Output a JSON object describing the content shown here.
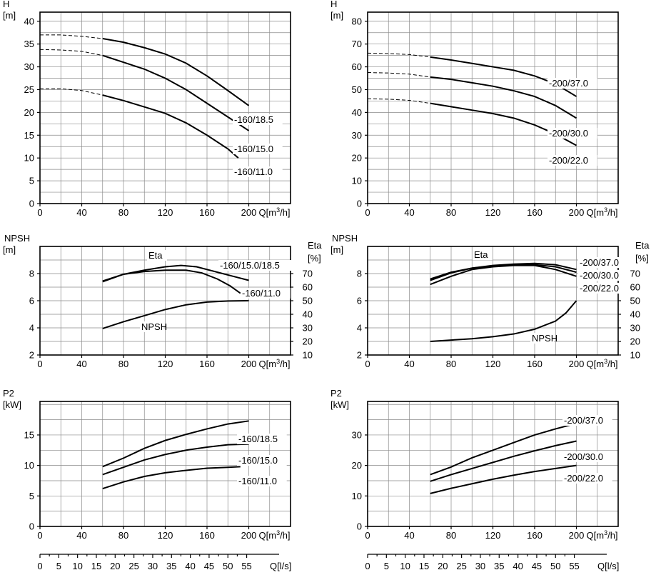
{
  "chart_data": [
    {
      "type": "line",
      "id": "H-160",
      "title": "",
      "ylabel": [
        "H",
        "[m]"
      ],
      "xlabel": "Q[m³/h]",
      "xlim": [
        0,
        240
      ],
      "xticks": [
        0,
        40,
        80,
        120,
        160,
        200
      ],
      "ylim": [
        0,
        42
      ],
      "yticks": [
        0,
        5,
        10,
        15,
        20,
        25,
        30,
        35,
        40
      ],
      "series": [
        {
          "name": "-160/18.5",
          "x": [
            0,
            20,
            40,
            60,
            80,
            100,
            120,
            140,
            160,
            180,
            200
          ],
          "y": [
            37,
            37,
            36.7,
            36.2,
            35.4,
            34.2,
            32.8,
            30.8,
            28,
            24.8,
            21.5
          ],
          "dashed_until": 60
        },
        {
          "name": "-160/15.0",
          "x": [
            0,
            20,
            40,
            60,
            80,
            100,
            120,
            140,
            160,
            180,
            200
          ],
          "y": [
            33.8,
            33.7,
            33.4,
            32.5,
            31,
            29.5,
            27.5,
            25,
            22,
            19,
            16
          ],
          "dashed_until": 60
        },
        {
          "name": "-160/11.0",
          "x": [
            0,
            20,
            40,
            60,
            80,
            100,
            120,
            140,
            160,
            180,
            190
          ],
          "y": [
            25.2,
            25.2,
            24.8,
            23.8,
            22.6,
            21.2,
            19.8,
            17.7,
            15,
            12,
            10
          ],
          "dashed_until": 60
        }
      ]
    },
    {
      "type": "line",
      "id": "H-200",
      "title": "",
      "ylabel": [
        "H",
        "[m]"
      ],
      "xlabel": "Q[m³/h]",
      "xlim": [
        0,
        240
      ],
      "xticks": [
        0,
        40,
        80,
        120,
        160,
        200
      ],
      "ylim": [
        0,
        84
      ],
      "yticks": [
        0,
        10,
        20,
        30,
        40,
        50,
        60,
        70,
        80
      ],
      "series": [
        {
          "name": "-200/37.0",
          "x": [
            0,
            20,
            40,
            60,
            80,
            100,
            120,
            140,
            160,
            180,
            200
          ],
          "y": [
            66,
            65.8,
            65.4,
            64.3,
            63,
            61.5,
            60,
            58.5,
            56,
            52.5,
            47
          ],
          "dashed_until": 60
        },
        {
          "name": "-200/30.0",
          "x": [
            0,
            20,
            40,
            60,
            80,
            100,
            120,
            140,
            160,
            180,
            200
          ],
          "y": [
            57.5,
            57.3,
            56.8,
            55.5,
            54.5,
            53,
            51.5,
            49.5,
            47,
            43,
            37.5
          ],
          "dashed_until": 60
        },
        {
          "name": "-200/22.0",
          "x": [
            0,
            20,
            40,
            60,
            80,
            100,
            120,
            140,
            160,
            180,
            200
          ],
          "y": [
            46,
            45.8,
            45.3,
            44,
            42.5,
            41,
            39.5,
            37.5,
            34.5,
            30.5,
            25.5
          ],
          "dashed_until": 60
        }
      ]
    },
    {
      "type": "line",
      "id": "NPSH-Eta-160",
      "title": "",
      "ylabel": [
        "NPSH",
        "[m]"
      ],
      "y2label": [
        "Eta",
        "[%]"
      ],
      "xlabel": "Q[m³/h]",
      "xlim": [
        0,
        240
      ],
      "xticks": [
        0,
        40,
        80,
        120,
        160,
        200
      ],
      "ylim": [
        2,
        10
      ],
      "yticks": [
        2,
        4,
        6,
        8
      ],
      "y2lim": [
        10,
        90
      ],
      "y2ticks": [
        10,
        20,
        30,
        40,
        50,
        60,
        70
      ],
      "series": [
        {
          "name": "-160/15.0/18.5",
          "axis": "y2",
          "x": [
            60,
            80,
            100,
            120,
            135,
            150,
            170,
            185,
            200
          ],
          "y": [
            64.5,
            69.5,
            72.5,
            75,
            76,
            75,
            71,
            68,
            65
          ]
        },
        {
          "name": "-160/11.0",
          "axis": "y2",
          "x": [
            60,
            80,
            100,
            120,
            140,
            155,
            170,
            182,
            192
          ],
          "y": [
            64,
            69.5,
            71.5,
            72.5,
            72.5,
            70.5,
            66,
            61,
            55.5
          ]
        },
        {
          "name": "NPSH",
          "axis": "y",
          "x": [
            60,
            80,
            100,
            120,
            140,
            160,
            180,
            200
          ],
          "y": [
            3.95,
            4.45,
            4.9,
            5.35,
            5.7,
            5.9,
            5.98,
            6.0
          ]
        }
      ],
      "annotations": [
        "Eta"
      ]
    },
    {
      "type": "line",
      "id": "NPSH-Eta-200",
      "title": "",
      "ylabel": [
        "NPSH",
        "[m]"
      ],
      "y2label": [
        "Eta",
        "[%]"
      ],
      "xlabel": "Q[m³/h]",
      "xlim": [
        0,
        240
      ],
      "xticks": [
        0,
        40,
        80,
        120,
        160,
        200
      ],
      "ylim": [
        2,
        10
      ],
      "yticks": [
        2,
        4,
        6,
        8
      ],
      "y2lim": [
        10,
        90
      ],
      "y2ticks": [
        10,
        20,
        30,
        40,
        50,
        60,
        70
      ],
      "series": [
        {
          "name": "-200/37.0",
          "axis": "y2",
          "x": [
            60,
            80,
            100,
            120,
            140,
            160,
            180,
            200
          ],
          "y": [
            66,
            71,
            74,
            76,
            77,
            77.5,
            76.5,
            73
          ]
        },
        {
          "name": "-200/30.0",
          "axis": "y2",
          "x": [
            60,
            80,
            100,
            120,
            140,
            160,
            180,
            200
          ],
          "y": [
            65,
            70.5,
            74,
            75.5,
            76.5,
            76.5,
            75,
            71
          ]
        },
        {
          "name": "-200/22.0",
          "axis": "y2",
          "x": [
            60,
            80,
            100,
            120,
            140,
            160,
            180,
            200
          ],
          "y": [
            62,
            68,
            73,
            75,
            76,
            76,
            73,
            68
          ]
        },
        {
          "name": "NPSH",
          "axis": "y",
          "x": [
            60,
            80,
            100,
            120,
            140,
            160,
            180,
            190,
            200
          ],
          "y": [
            3.0,
            3.1,
            3.2,
            3.35,
            3.55,
            3.9,
            4.5,
            5.1,
            6.0
          ]
        }
      ],
      "annotations": [
        "Eta"
      ]
    },
    {
      "type": "line",
      "id": "P2-160",
      "title": "",
      "ylabel": [
        "P2",
        "[kW]"
      ],
      "xlabel": "Q[m³/h]",
      "x2label": "Q[l/s]",
      "xlim": [
        0,
        240
      ],
      "xticks": [
        0,
        40,
        80,
        120,
        160,
        200
      ],
      "x2ticks": [
        0,
        5,
        10,
        15,
        20,
        25,
        30,
        35,
        40,
        45,
        50,
        55
      ],
      "ylim": [
        0,
        20.5
      ],
      "yticks": [
        0,
        5,
        10,
        15
      ],
      "series": [
        {
          "name": "-160/18.5",
          "x": [
            60,
            80,
            100,
            120,
            140,
            160,
            180,
            200
          ],
          "y": [
            9.8,
            11.2,
            12.8,
            14.1,
            15.1,
            16,
            16.8,
            17.3
          ]
        },
        {
          "name": "-160/15.0",
          "x": [
            60,
            80,
            100,
            120,
            140,
            160,
            180,
            200
          ],
          "y": [
            8.5,
            9.7,
            10.9,
            11.8,
            12.5,
            13,
            13.4,
            13.5
          ]
        },
        {
          "name": "-160/11.0",
          "x": [
            60,
            80,
            100,
            120,
            140,
            160,
            180,
            192
          ],
          "y": [
            6.2,
            7.3,
            8.2,
            8.8,
            9.2,
            9.55,
            9.7,
            9.8
          ]
        }
      ]
    },
    {
      "type": "line",
      "id": "P2-200",
      "title": "",
      "ylabel": [
        "P2",
        "[kW]"
      ],
      "xlabel": "Q[m³/h]",
      "x2label": "Q[l/s]",
      "xlim": [
        0,
        240
      ],
      "xticks": [
        0,
        40,
        80,
        120,
        160,
        200
      ],
      "x2ticks": [
        0,
        5,
        10,
        15,
        20,
        25,
        30,
        35,
        40,
        45,
        50,
        55
      ],
      "ylim": [
        0,
        41
      ],
      "yticks": [
        0,
        10,
        20,
        30
      ],
      "series": [
        {
          "name": "-200/37.0",
          "x": [
            60,
            80,
            100,
            120,
            140,
            160,
            180,
            200
          ],
          "y": [
            17,
            19.5,
            22.5,
            25,
            27.5,
            30,
            32,
            33.8
          ]
        },
        {
          "name": "-200/30.0",
          "x": [
            60,
            80,
            100,
            120,
            140,
            160,
            180,
            200
          ],
          "y": [
            14.8,
            17,
            19,
            21,
            23,
            24.8,
            26.5,
            28
          ]
        },
        {
          "name": "-200/22.0",
          "x": [
            60,
            80,
            100,
            120,
            140,
            160,
            180,
            200
          ],
          "y": [
            10.8,
            12.5,
            14,
            15.5,
            16.8,
            18,
            19,
            20
          ]
        }
      ]
    }
  ]
}
